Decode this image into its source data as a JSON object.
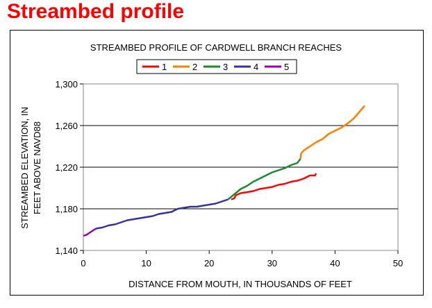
{
  "slide": {
    "title": "Streambed profile"
  },
  "chart_data": {
    "type": "line",
    "title": "STREAMBED PROFILE OF CARDWELL BRANCH REACHES",
    "xlabel": "DISTANCE FROM MOUTH, IN THOUSANDS OF FEET",
    "ylabel_line1": "STREAMBED ELEVATION, IN",
    "ylabel_line2": "FEET ABOVE NAVD88",
    "xlim": [
      0,
      50
    ],
    "ylim": [
      1140,
      1300
    ],
    "x_ticks": [
      0,
      10,
      20,
      30,
      40,
      50
    ],
    "x_tick_labels": [
      "0",
      "10",
      "20",
      "30",
      "40",
      "50"
    ],
    "y_ticks": [
      1140,
      1180,
      1220,
      1260,
      1300
    ],
    "y_tick_labels": [
      "1,140",
      "1,180",
      "1,220",
      "1,260",
      "1,300"
    ],
    "grid": "horizontal",
    "legend_position": "top-center",
    "series": [
      {
        "name": "1",
        "color": "#ff0000",
        "points": [
          [
            23.5,
            1189
          ],
          [
            24.0,
            1190
          ],
          [
            24.2,
            1193
          ],
          [
            25,
            1195
          ],
          [
            26,
            1196
          ],
          [
            27,
            1197
          ],
          [
            28,
            1199
          ],
          [
            29,
            1200
          ],
          [
            30,
            1201
          ],
          [
            31,
            1203
          ],
          [
            32,
            1204
          ],
          [
            33,
            1206
          ],
          [
            34,
            1207
          ],
          [
            35,
            1209
          ],
          [
            36,
            1212
          ],
          [
            36.8,
            1212
          ],
          [
            37,
            1214
          ]
        ]
      },
      {
        "name": "2",
        "color": "#ff8000",
        "points": [
          [
            34.5,
            1228
          ],
          [
            34.6,
            1233
          ],
          [
            35,
            1236
          ],
          [
            36,
            1240
          ],
          [
            37,
            1244
          ],
          [
            38,
            1247
          ],
          [
            39,
            1252
          ],
          [
            40,
            1255
          ],
          [
            41,
            1258
          ],
          [
            42,
            1262
          ],
          [
            43,
            1267
          ],
          [
            44,
            1274
          ],
          [
            44.7,
            1279
          ]
        ]
      },
      {
        "name": "3",
        "color": "#1a8a2e",
        "points": [
          [
            23,
            1189
          ],
          [
            24,
            1194
          ],
          [
            25,
            1199
          ],
          [
            26,
            1202
          ],
          [
            27,
            1206
          ],
          [
            28,
            1209
          ],
          [
            29,
            1212
          ],
          [
            30,
            1215
          ],
          [
            31,
            1217
          ],
          [
            32,
            1219
          ],
          [
            33,
            1222
          ],
          [
            34,
            1224
          ],
          [
            34.5,
            1228
          ]
        ]
      },
      {
        "name": "4",
        "color": "#333399",
        "points": [
          [
            2,
            1161
          ],
          [
            3,
            1162
          ],
          [
            4,
            1164
          ],
          [
            5,
            1165
          ],
          [
            6,
            1167
          ],
          [
            7,
            1169
          ],
          [
            8,
            1170
          ],
          [
            9,
            1171
          ],
          [
            10,
            1172
          ],
          [
            11,
            1173
          ],
          [
            12,
            1175
          ],
          [
            13,
            1176
          ],
          [
            14,
            1177
          ],
          [
            15,
            1180
          ],
          [
            16,
            1181
          ],
          [
            17,
            1182
          ],
          [
            18,
            1182
          ],
          [
            19,
            1183
          ],
          [
            20,
            1184
          ],
          [
            21,
            1185
          ],
          [
            22,
            1187
          ],
          [
            23,
            1189
          ]
        ]
      },
      {
        "name": "5",
        "color": "#990099",
        "points": [
          [
            0,
            1154
          ],
          [
            0.5,
            1155
          ],
          [
            1,
            1157
          ],
          [
            1.5,
            1159
          ],
          [
            2,
            1161
          ]
        ]
      }
    ]
  }
}
